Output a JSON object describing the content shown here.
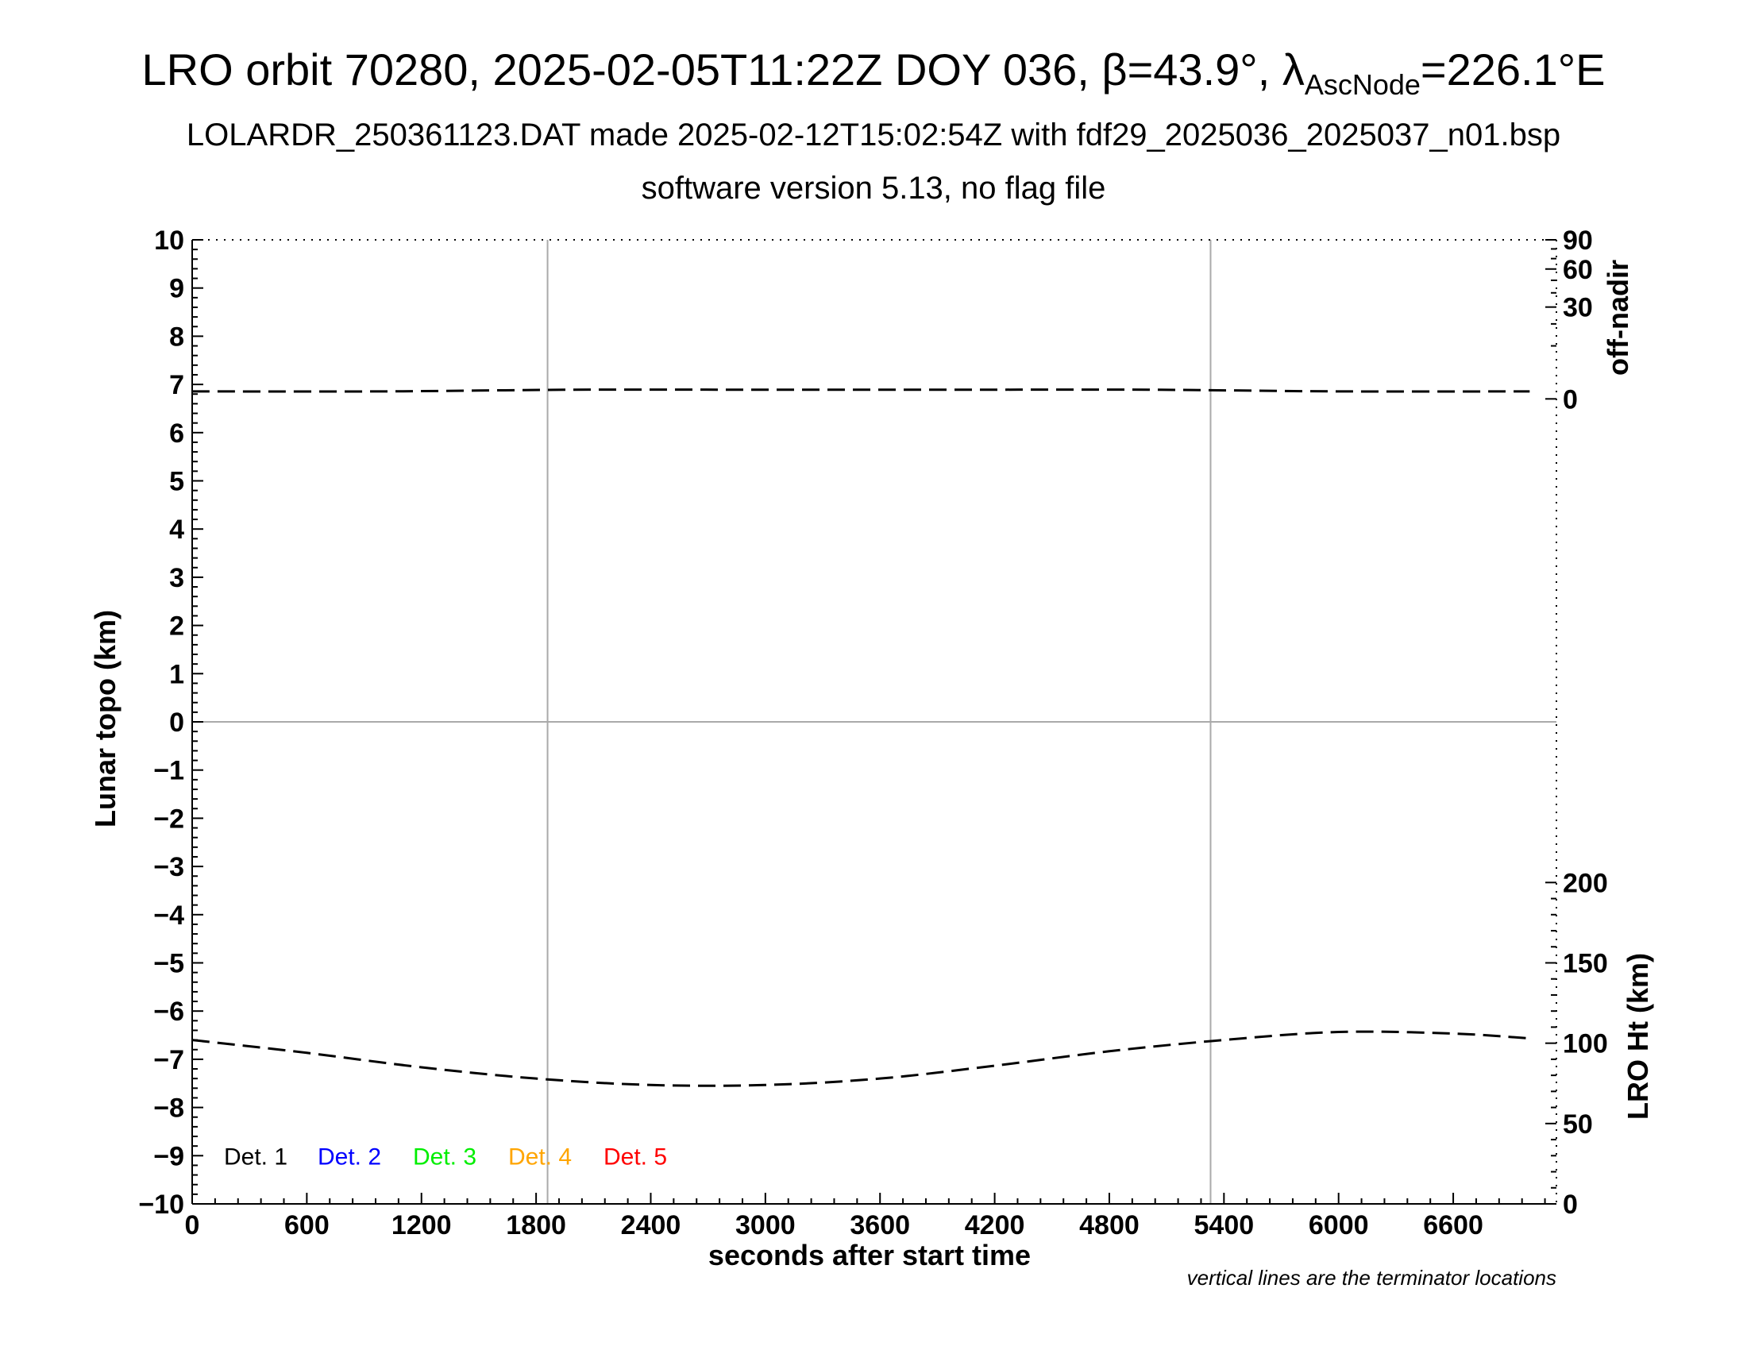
{
  "title": {
    "prefix": "LRO orbit 70280, 2025-02-05T11:22Z DOY 036, β=43.9°, λ",
    "sub": "AscNode",
    "suffix": "=226.1°E"
  },
  "subtitle1": "LOLARDR_250361123.DAT made 2025-02-12T15:02:54Z with fdf29_2025036_2025037_n01.bsp",
  "subtitle2": "software version 5.13, no flag file",
  "note": "vertical lines are the terminator locations",
  "chart_data": {
    "type": "line",
    "xlabel": "seconds after start time",
    "ylabel": "Lunar topo (km)",
    "right_top_label": "off-nadir",
    "right_bottom_label": "LRO Ht (km)",
    "xlim": [
      0,
      7140
    ],
    "ylim": [
      -10,
      10
    ],
    "x_ticks": [
      0,
      600,
      1200,
      1800,
      2400,
      3000,
      3600,
      4200,
      4800,
      5400,
      6000,
      6600
    ],
    "y_ticks": [
      10,
      9,
      8,
      7,
      6,
      5,
      4,
      3,
      2,
      1,
      0,
      -1,
      -2,
      -3,
      -4,
      -5,
      -6,
      -7,
      -8,
      -9,
      -10
    ],
    "y_tick_labels": [
      "10",
      "9",
      "8",
      "7",
      "6",
      "5",
      "4",
      "3",
      "2",
      "1",
      "0",
      "−1",
      "−2",
      "−3",
      "−4",
      "−5",
      "−6",
      "−7",
      "−8",
      "−9",
      "−10"
    ],
    "off_nadir_ticks": [
      90,
      60,
      30,
      0
    ],
    "off_nadir_axis": "sqrt scale, 0 at topo 6.7 km, 90 at topo 10 km",
    "lro_ht_ticks": [
      200,
      150,
      100,
      50,
      0
    ],
    "lro_ht_axis": "linear, 0 km at topo -10, 200 km at topo -3.33",
    "terminators_s": [
      1860,
      5330
    ],
    "grid": "zero line and terminator lines",
    "legend_position": "bottom-left",
    "legend": [
      {
        "label": "Det. 1",
        "color": "#000000"
      },
      {
        "label": "Det. 2",
        "color": "#0000ff"
      },
      {
        "label": "Det. 3",
        "color": "#00ee00"
      },
      {
        "label": "Det. 4",
        "color": "#ffa500"
      },
      {
        "label": "Det. 5",
        "color": "#ff0000"
      }
    ],
    "series": [
      {
        "axis": "off-nadir",
        "style": "dashed",
        "color": "#000000",
        "x": [
          0,
          1000,
          2000,
          3000,
          4000,
          5000,
          6000,
          7000
        ],
        "values": [
          0.2,
          0.2,
          0.3,
          0.3,
          0.3,
          0.3,
          0.2,
          0.2
        ]
      },
      {
        "axis": "LRO Ht (km)",
        "style": "dashed",
        "color": "#000000",
        "x": [
          0,
          600,
          1200,
          1800,
          2400,
          3000,
          3600,
          4200,
          4800,
          5400,
          6000,
          6600,
          7000
        ],
        "values": [
          102,
          94,
          85,
          78,
          74,
          74,
          78,
          86,
          95,
          102,
          107,
          106,
          103
        ]
      }
    ]
  }
}
